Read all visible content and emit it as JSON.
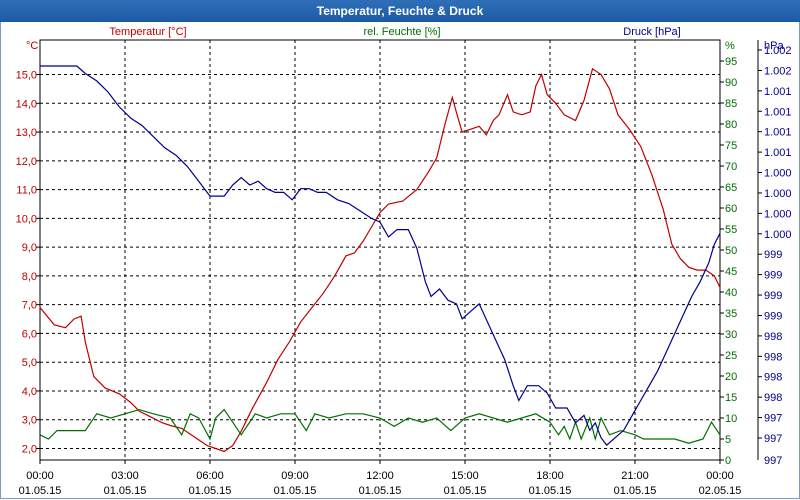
{
  "window": {
    "title": "Temperatur, Feuchte & Druck"
  },
  "colors": {
    "temperature": "#c00000",
    "humidity": "#007000",
    "pressure": "#00008b",
    "grid": "#000000",
    "axis": "#000000"
  },
  "chart_data": {
    "type": "line",
    "title": "Temperatur, Feuchte & Druck",
    "x_ticks": [
      {
        "time": "00:00",
        "date": "01.05.15"
      },
      {
        "time": "03:00",
        "date": "01.05.15"
      },
      {
        "time": "06:00",
        "date": "01.05.15"
      },
      {
        "time": "09:00",
        "date": "01.05.15"
      },
      {
        "time": "12:00",
        "date": "01.05.15"
      },
      {
        "time": "15:00",
        "date": "01.05.15"
      },
      {
        "time": "18:00",
        "date": "01.05.15"
      },
      {
        "time": "21:00",
        "date": "01.05.15"
      },
      {
        "time": "00:00",
        "date": "02.05.15"
      }
    ],
    "x_range_hours": [
      0,
      24
    ],
    "axes": {
      "temperature": {
        "label": "Temperatur [°C]",
        "unit": "°C",
        "range": [
          1.6,
          16.2
        ],
        "ticks": [
          "2,0",
          "3,0",
          "4,0",
          "5,0",
          "6,0",
          "7,0",
          "8,0",
          "9,0",
          "10,0",
          "11,0",
          "12,0",
          "13,0",
          "14,0",
          "15,0"
        ]
      },
      "humidity": {
        "label": "rel. Feuchte [%]",
        "unit": "%",
        "range": [
          0,
          100
        ],
        "ticks": [
          "0",
          "5",
          "10",
          "15",
          "20",
          "25",
          "30",
          "35",
          "40",
          "45",
          "50",
          "55",
          "60",
          "65",
          "70",
          "75",
          "80",
          "85",
          "90",
          "95"
        ]
      },
      "pressure": {
        "label": "Druck [hPa]",
        "unit": "hPa",
        "range": [
          996.85,
          1002.5
        ],
        "ticks": [
          "997",
          "997",
          "998",
          "998",
          "998",
          "998",
          "999",
          "999",
          "999",
          "999",
          "1.000",
          "1.000",
          "1.000",
          "1.000",
          "1.001",
          "1.001",
          "1.001",
          "1.001",
          "1.002",
          "1.002"
        ]
      }
    },
    "series": [
      {
        "name": "Temperatur",
        "axis": "temperature",
        "color": "#c00000",
        "points": [
          [
            0,
            6.9
          ],
          [
            0.5,
            6.3
          ],
          [
            0.9,
            6.2
          ],
          [
            1.2,
            6.5
          ],
          [
            1.45,
            6.6
          ],
          [
            1.6,
            5.7
          ],
          [
            1.9,
            4.5
          ],
          [
            2.3,
            4.1
          ],
          [
            2.8,
            3.9
          ],
          [
            3.2,
            3.6
          ],
          [
            3.5,
            3.3
          ],
          [
            3.9,
            3.1
          ],
          [
            4.3,
            2.9
          ],
          [
            4.6,
            2.8
          ],
          [
            5.0,
            2.7
          ],
          [
            5.3,
            2.5
          ],
          [
            5.6,
            2.3
          ],
          [
            5.9,
            2.1
          ],
          [
            6.2,
            2.0
          ],
          [
            6.5,
            1.9
          ],
          [
            6.8,
            2.1
          ],
          [
            7.1,
            2.6
          ],
          [
            7.5,
            3.4
          ],
          [
            8.0,
            4.3
          ],
          [
            8.4,
            5.1
          ],
          [
            8.8,
            5.7
          ],
          [
            9.2,
            6.4
          ],
          [
            9.6,
            6.9
          ],
          [
            10.0,
            7.4
          ],
          [
            10.4,
            8.0
          ],
          [
            10.8,
            8.7
          ],
          [
            11.1,
            8.8
          ],
          [
            11.4,
            9.2
          ],
          [
            11.7,
            9.7
          ],
          [
            12.0,
            10.2
          ],
          [
            12.3,
            10.5
          ],
          [
            12.8,
            10.6
          ],
          [
            13.3,
            11.0
          ],
          [
            13.7,
            11.6
          ],
          [
            14.0,
            12.1
          ],
          [
            14.3,
            13.3
          ],
          [
            14.55,
            14.2
          ],
          [
            14.75,
            13.5
          ],
          [
            14.9,
            13.0
          ],
          [
            15.2,
            13.1
          ],
          [
            15.5,
            13.2
          ],
          [
            15.75,
            12.9
          ],
          [
            16.0,
            13.4
          ],
          [
            16.2,
            13.6
          ],
          [
            16.5,
            14.3
          ],
          [
            16.7,
            13.7
          ],
          [
            17.0,
            13.6
          ],
          [
            17.3,
            13.7
          ],
          [
            17.5,
            14.6
          ],
          [
            17.7,
            15.0
          ],
          [
            17.9,
            14.3
          ],
          [
            18.2,
            14.0
          ],
          [
            18.5,
            13.6
          ],
          [
            18.9,
            13.4
          ],
          [
            19.2,
            14.1
          ],
          [
            19.5,
            15.2
          ],
          [
            19.8,
            15.0
          ],
          [
            20.1,
            14.5
          ],
          [
            20.4,
            13.6
          ],
          [
            20.8,
            13.1
          ],
          [
            21.2,
            12.5
          ],
          [
            21.6,
            11.5
          ],
          [
            22.0,
            10.3
          ],
          [
            22.3,
            9.1
          ],
          [
            22.6,
            8.6
          ],
          [
            22.9,
            8.3
          ],
          [
            23.2,
            8.2
          ],
          [
            23.5,
            8.2
          ],
          [
            23.8,
            8.0
          ],
          [
            24.0,
            7.6
          ]
        ]
      },
      {
        "name": "rel. Feuchte",
        "axis": "humidity",
        "color": "#007000",
        "points": [
          [
            0,
            6
          ],
          [
            0.3,
            5
          ],
          [
            0.6,
            7
          ],
          [
            1.0,
            7
          ],
          [
            1.6,
            7
          ],
          [
            2.0,
            11
          ],
          [
            2.5,
            10
          ],
          [
            3.0,
            11
          ],
          [
            3.5,
            12
          ],
          [
            4.0,
            11
          ],
          [
            4.6,
            10
          ],
          [
            5.0,
            6
          ],
          [
            5.3,
            11
          ],
          [
            5.6,
            10
          ],
          [
            6.0,
            5
          ],
          [
            6.2,
            10
          ],
          [
            6.5,
            12
          ],
          [
            6.8,
            9
          ],
          [
            7.1,
            6
          ],
          [
            7.6,
            11
          ],
          [
            8.0,
            10
          ],
          [
            8.5,
            11
          ],
          [
            9.0,
            11
          ],
          [
            9.4,
            7
          ],
          [
            9.7,
            11
          ],
          [
            10.2,
            10
          ],
          [
            10.8,
            11
          ],
          [
            11.4,
            11
          ],
          [
            12.0,
            10
          ],
          [
            12.5,
            8
          ],
          [
            13.0,
            10
          ],
          [
            13.5,
            9
          ],
          [
            14.0,
            10
          ],
          [
            14.5,
            7
          ],
          [
            15.0,
            10
          ],
          [
            15.5,
            11
          ],
          [
            16.0,
            10
          ],
          [
            16.5,
            9
          ],
          [
            17.0,
            10
          ],
          [
            17.5,
            11
          ],
          [
            18.0,
            9
          ],
          [
            18.3,
            6
          ],
          [
            18.5,
            8
          ],
          [
            18.7,
            5
          ],
          [
            18.9,
            9
          ],
          [
            19.1,
            5
          ],
          [
            19.4,
            10
          ],
          [
            19.6,
            5
          ],
          [
            19.8,
            10
          ],
          [
            20.1,
            6
          ],
          [
            20.5,
            7
          ],
          [
            21.0,
            6
          ],
          [
            21.3,
            5
          ],
          [
            21.8,
            5
          ],
          [
            22.4,
            5
          ],
          [
            22.9,
            4
          ],
          [
            23.4,
            5
          ],
          [
            23.7,
            9
          ],
          [
            24.0,
            6
          ]
        ]
      },
      {
        "name": "Druck",
        "axis": "pressure",
        "color": "#00008b",
        "points": [
          [
            0,
            1002.15
          ],
          [
            1.3,
            1002.15
          ],
          [
            1.6,
            1002.05
          ],
          [
            2.0,
            1001.95
          ],
          [
            2.4,
            1001.8
          ],
          [
            2.8,
            1001.6
          ],
          [
            3.2,
            1001.45
          ],
          [
            3.6,
            1001.35
          ],
          [
            4.0,
            1001.2
          ],
          [
            4.4,
            1001.05
          ],
          [
            4.8,
            1000.95
          ],
          [
            5.2,
            1000.8
          ],
          [
            5.6,
            1000.6
          ],
          [
            6.0,
            1000.4
          ],
          [
            6.5,
            1000.4
          ],
          [
            6.8,
            1000.55
          ],
          [
            7.1,
            1000.65
          ],
          [
            7.4,
            1000.55
          ],
          [
            7.7,
            1000.6
          ],
          [
            8.0,
            1000.5
          ],
          [
            8.3,
            1000.45
          ],
          [
            8.6,
            1000.45
          ],
          [
            8.9,
            1000.35
          ],
          [
            9.2,
            1000.5
          ],
          [
            9.5,
            1000.5
          ],
          [
            9.8,
            1000.45
          ],
          [
            10.1,
            1000.45
          ],
          [
            10.5,
            1000.35
          ],
          [
            10.9,
            1000.3
          ],
          [
            11.3,
            1000.2
          ],
          [
            11.7,
            1000.1
          ],
          [
            12.0,
            1000.05
          ],
          [
            12.3,
            999.85
          ],
          [
            12.6,
            999.95
          ],
          [
            13.0,
            999.95
          ],
          [
            13.3,
            999.7
          ],
          [
            13.6,
            999.25
          ],
          [
            13.8,
            999.05
          ],
          [
            14.1,
            999.15
          ],
          [
            14.4,
            999.0
          ],
          [
            14.7,
            998.95
          ],
          [
            14.9,
            998.75
          ],
          [
            15.2,
            998.85
          ],
          [
            15.5,
            998.95
          ],
          [
            15.8,
            998.7
          ],
          [
            16.1,
            998.45
          ],
          [
            16.4,
            998.2
          ],
          [
            16.7,
            997.85
          ],
          [
            16.9,
            997.65
          ],
          [
            17.2,
            997.85
          ],
          [
            17.6,
            997.85
          ],
          [
            17.9,
            997.75
          ],
          [
            18.2,
            997.55
          ],
          [
            18.6,
            997.55
          ],
          [
            18.9,
            997.35
          ],
          [
            19.2,
            997.45
          ],
          [
            19.4,
            997.25
          ],
          [
            19.6,
            997.35
          ],
          [
            19.8,
            997.15
          ],
          [
            20.0,
            997.05
          ],
          [
            20.3,
            997.15
          ],
          [
            20.6,
            997.25
          ],
          [
            20.9,
            997.45
          ],
          [
            21.2,
            997.65
          ],
          [
            21.5,
            997.85
          ],
          [
            21.8,
            998.05
          ],
          [
            22.1,
            998.3
          ],
          [
            22.4,
            998.55
          ],
          [
            22.7,
            998.8
          ],
          [
            23.0,
            999.05
          ],
          [
            23.3,
            999.25
          ],
          [
            23.6,
            999.5
          ],
          [
            23.8,
            999.75
          ],
          [
            24.0,
            999.9
          ]
        ]
      }
    ]
  }
}
